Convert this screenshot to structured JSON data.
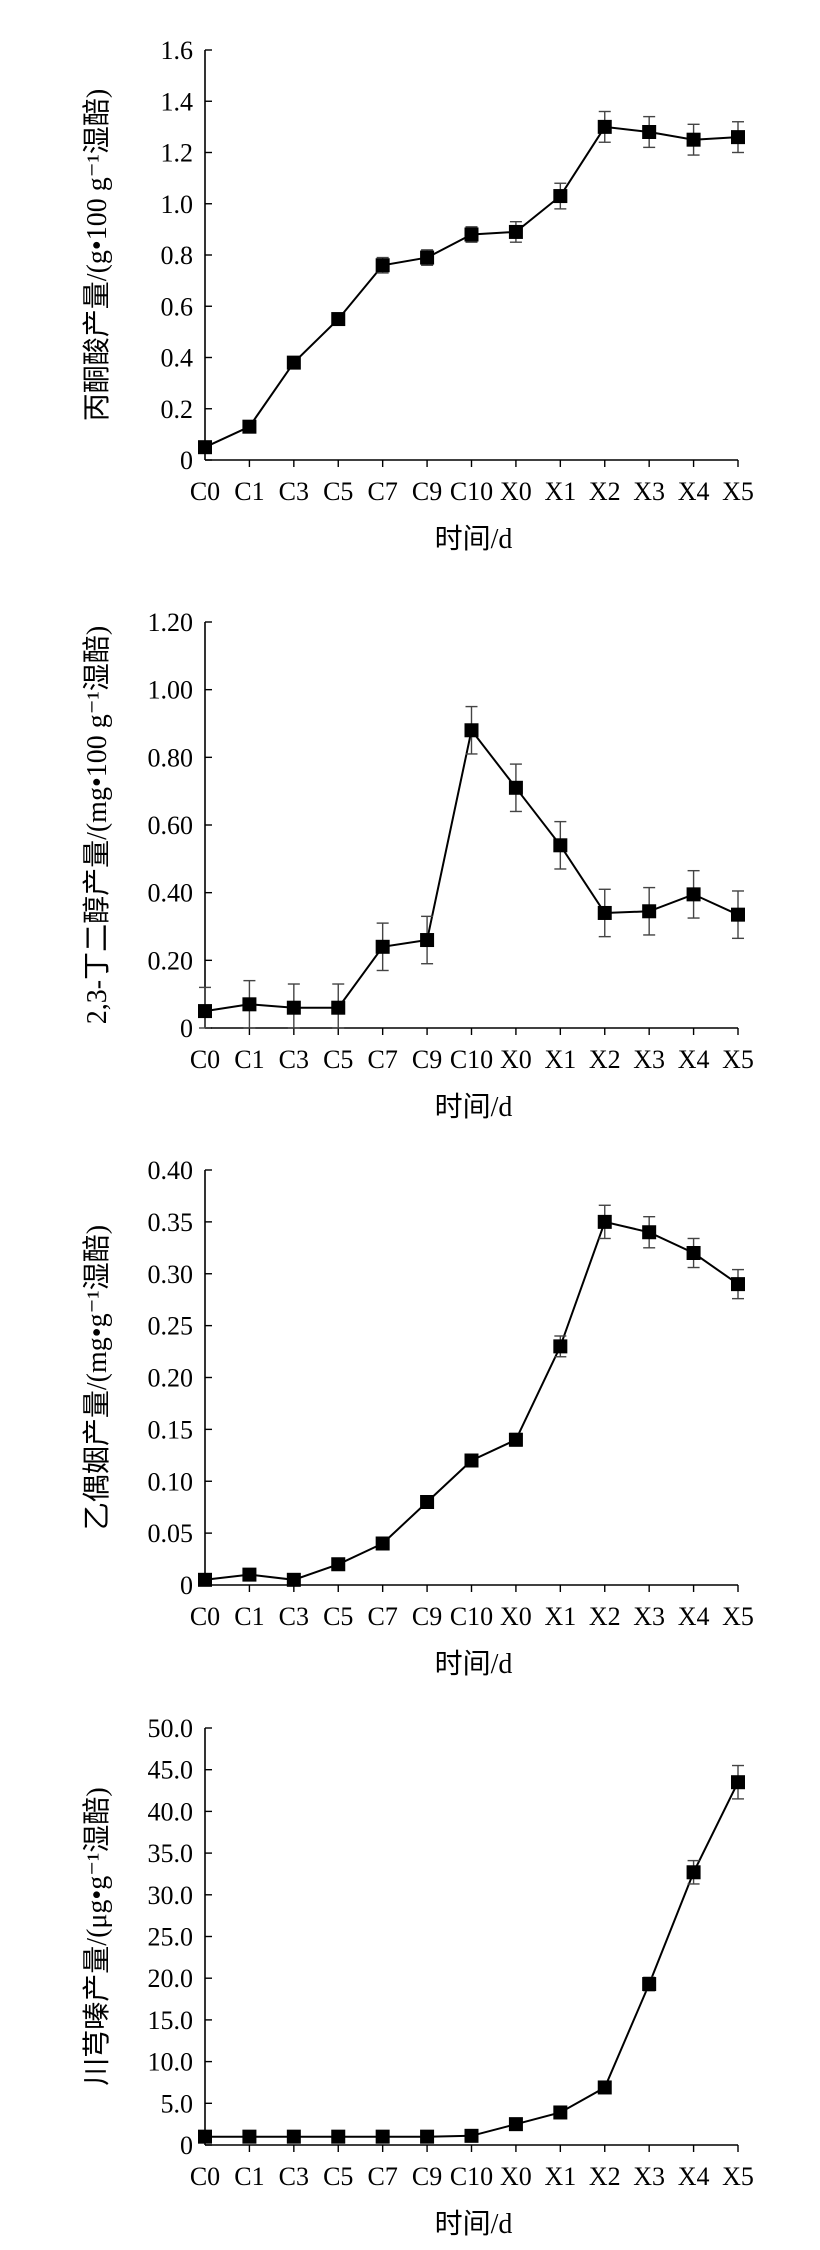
{
  "chart_data": [
    {
      "type": "line",
      "title": "",
      "categories": [
        "C0",
        "C1",
        "C3",
        "C5",
        "C7",
        "C9",
        "C10",
        "X0",
        "X1",
        "X2",
        "X3",
        "X4",
        "X5"
      ],
      "values": [
        0.05,
        0.13,
        0.38,
        0.55,
        0.76,
        0.79,
        0.88,
        0.89,
        1.03,
        1.3,
        1.28,
        1.25,
        1.26
      ],
      "errors": [
        0.02,
        0.02,
        0.02,
        0.02,
        0.03,
        0.03,
        0.03,
        0.04,
        0.05,
        0.06,
        0.06,
        0.06,
        0.06
      ],
      "ylim": [
        0,
        1.6
      ],
      "yticks": [
        "0",
        "0.2",
        "0.4",
        "0.6",
        "0.8",
        "1.0",
        "1.2",
        "1.4",
        "1.6"
      ],
      "ylabel": "丙酮酸产量/(g•100 g⁻¹湿醅)",
      "xlabel": "时间/d"
    },
    {
      "type": "line",
      "title": "",
      "categories": [
        "C0",
        "C1",
        "C3",
        "C5",
        "C7",
        "C9",
        "C10",
        "X0",
        "X1",
        "X2",
        "X3",
        "X4",
        "X5"
      ],
      "values": [
        0.05,
        0.07,
        0.06,
        0.06,
        0.24,
        0.26,
        0.88,
        0.71,
        0.54,
        0.34,
        0.345,
        0.395,
        0.335
      ],
      "errors": [
        0.07,
        0.07,
        0.07,
        0.07,
        0.07,
        0.07,
        0.07,
        0.07,
        0.07,
        0.07,
        0.07,
        0.07,
        0.07
      ],
      "ylim": [
        0,
        1.2
      ],
      "yticks": [
        "0",
        "0.20",
        "0.40",
        "0.60",
        "0.80",
        "1.00",
        "1.20"
      ],
      "ylabel": "2,3-丁二醇产量/(mg•100 g⁻¹湿醅)",
      "xlabel": "时间/d"
    },
    {
      "type": "line",
      "title": "",
      "categories": [
        "C0",
        "C1",
        "C3",
        "C5",
        "C7",
        "C9",
        "C10",
        "X0",
        "X1",
        "X2",
        "X3",
        "X4",
        "X5"
      ],
      "values": [
        0.005,
        0.01,
        0.005,
        0.02,
        0.04,
        0.08,
        0.12,
        0.14,
        0.23,
        0.35,
        0.34,
        0.32,
        0.29
      ],
      "errors": [
        0.003,
        0.003,
        0.003,
        0.004,
        0.004,
        0.005,
        0.005,
        0.006,
        0.01,
        0.016,
        0.015,
        0.014,
        0.014
      ],
      "ylim": [
        0,
        0.4
      ],
      "yticks": [
        "0",
        "0.05",
        "0.10",
        "0.15",
        "0.20",
        "0.25",
        "0.30",
        "0.35",
        "0.40"
      ],
      "ylabel": "乙偶姻产量/(mg•g⁻¹湿醅)",
      "xlabel": "时间/d"
    },
    {
      "type": "line",
      "title": "",
      "categories": [
        "C0",
        "C1",
        "C3",
        "C5",
        "C7",
        "C9",
        "C10",
        "X0",
        "X1",
        "X2",
        "X3",
        "X4",
        "X5"
      ],
      "values": [
        1.0,
        1.0,
        1.0,
        1.0,
        1.0,
        1.0,
        1.1,
        2.5,
        3.9,
        6.9,
        19.3,
        32.7,
        43.5
      ],
      "errors": [
        0.2,
        0.2,
        0.2,
        0.2,
        0.2,
        0.2,
        0.2,
        0.3,
        0.4,
        0.5,
        0.8,
        1.4,
        2.0
      ],
      "ylim": [
        0,
        50
      ],
      "yticks": [
        "0",
        "5.0",
        "10.0",
        "15.0",
        "20.0",
        "25.0",
        "30.0",
        "35.0",
        "40.0",
        "45.0",
        "50.0"
      ],
      "ylabel": "川芎嗪产量/(μg•g⁻¹湿醅)",
      "xlabel": "时间/d"
    }
  ]
}
